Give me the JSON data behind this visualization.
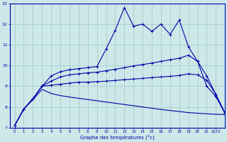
{
  "xlabel": "Graphe des températures (°c)",
  "bg_color": "#cce8e8",
  "grid_color": "#aacccc",
  "line_color": "#0000aa",
  "x_values": [
    0,
    1,
    2,
    3,
    4,
    5,
    6,
    7,
    8,
    9,
    10,
    11,
    12,
    13,
    14,
    15,
    16,
    17,
    18,
    19,
    20,
    21,
    22,
    23
  ],
  "line1": [
    7.1,
    7.9,
    8.4,
    9.0,
    9.5,
    9.7,
    9.8,
    9.85,
    9.9,
    9.95,
    10.8,
    11.7,
    12.8,
    11.9,
    12.0,
    11.65,
    12.0,
    11.5,
    12.2,
    10.9,
    10.2,
    9.0,
    8.5,
    7.7
  ],
  "line2": [
    7.1,
    7.9,
    8.4,
    9.0,
    9.25,
    9.45,
    9.55,
    9.6,
    9.65,
    9.68,
    9.75,
    9.82,
    9.9,
    9.98,
    10.05,
    10.12,
    10.2,
    10.28,
    10.35,
    10.5,
    10.2,
    9.5,
    8.6,
    7.7
  ],
  "line3": [
    7.1,
    7.9,
    8.4,
    9.0,
    9.05,
    9.1,
    9.15,
    9.2,
    9.2,
    9.22,
    9.25,
    9.28,
    9.32,
    9.35,
    9.38,
    9.42,
    9.45,
    9.48,
    9.52,
    9.6,
    9.55,
    9.3,
    8.6,
    7.7
  ],
  "line4": [
    7.1,
    7.9,
    8.35,
    8.85,
    8.65,
    8.55,
    8.48,
    8.42,
    8.36,
    8.3,
    8.24,
    8.18,
    8.12,
    8.06,
    8.0,
    7.94,
    7.88,
    7.83,
    7.78,
    7.73,
    7.7,
    7.67,
    7.65,
    7.63
  ],
  "ylim": [
    7,
    13
  ],
  "yticks": [
    7,
    8,
    9,
    10,
    11,
    12,
    13
  ],
  "xlim": [
    -0.5,
    23
  ],
  "xtick_labels": [
    "0",
    "1",
    "2",
    "3",
    "4",
    "5",
    "6",
    "7",
    "8",
    "9",
    "10",
    "11",
    "12",
    "13",
    "14",
    "15",
    "16",
    "17",
    "18",
    "19",
    "20",
    "21",
    "2223"
  ]
}
